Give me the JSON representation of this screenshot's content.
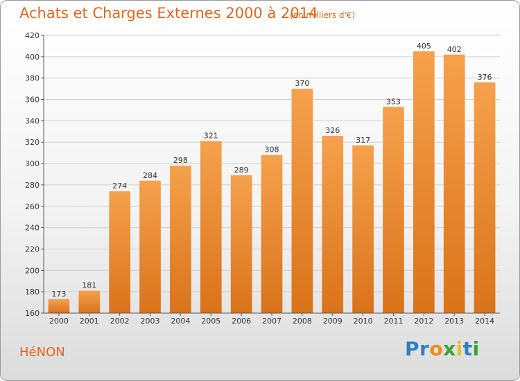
{
  "header": {
    "title": "Achats et Charges Externes 2000 à 2014",
    "subtitle": "(en milliers d'€)"
  },
  "footer": {
    "commune": "HéNON",
    "logo_text": "Proxiti",
    "logo_letters": [
      {
        "ch": "P",
        "color": "#2f7fc1"
      },
      {
        "ch": "r",
        "color": "#2f7fc1"
      },
      {
        "ch": "o",
        "color": "#f08a1c"
      },
      {
        "ch": "x",
        "color": "#3aa535"
      },
      {
        "ch": "i",
        "color": "#e8c21a"
      },
      {
        "ch": "t",
        "color": "#2f7fc1"
      },
      {
        "ch": "i",
        "color": "#3aa535"
      }
    ]
  },
  "colors": {
    "accent": "#e0661d",
    "bar_top": "#f6a14d",
    "bar_bottom": "#d9731a"
  },
  "chart_data": {
    "type": "bar",
    "categories": [
      "2000",
      "2001",
      "2002",
      "2003",
      "2004",
      "2005",
      "2006",
      "2007",
      "2008",
      "2009",
      "2010",
      "2011",
      "2012",
      "2013",
      "2014"
    ],
    "values": [
      173,
      181,
      274,
      284,
      298,
      321,
      289,
      308,
      370,
      326,
      317,
      353,
      405,
      402,
      376
    ],
    "ylim": [
      160,
      420
    ],
    "yticks": [
      160,
      180,
      200,
      220,
      240,
      260,
      280,
      300,
      320,
      340,
      360,
      380,
      400,
      420
    ],
    "grid": "horizontal",
    "data_labels": true
  }
}
